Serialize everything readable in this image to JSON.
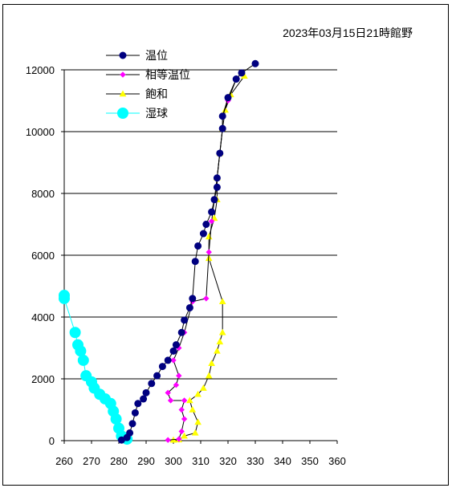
{
  "chart_data": {
    "type": "scatter",
    "title": "2023年03月15日21時館野",
    "xlabel": "",
    "ylabel": "",
    "xlim": [
      260,
      360
    ],
    "ylim": [
      0,
      12000
    ],
    "x_ticks": [
      260,
      270,
      280,
      290,
      300,
      310,
      320,
      330,
      340,
      350,
      360
    ],
    "y_ticks": [
      0,
      2000,
      4000,
      6000,
      8000,
      10000,
      12000
    ],
    "x_tick_labels": [
      "260",
      "270",
      "280",
      "290",
      "300",
      "310",
      "320",
      "330",
      "340",
      "350",
      "360"
    ],
    "y_tick_labels": [
      "0",
      "2000",
      "4000",
      "6000",
      "8000",
      "10000",
      "12000"
    ],
    "grid": "horizontal",
    "legend_position": "top-left",
    "series": [
      {
        "name": "温位",
        "color": "#000080",
        "marker": "circle-large",
        "points": [
          [
            281,
            20
          ],
          [
            283,
            100
          ],
          [
            284,
            250
          ],
          [
            285,
            550
          ],
          [
            286,
            900
          ],
          [
            287,
            1200
          ],
          [
            289,
            1350
          ],
          [
            290,
            1550
          ],
          [
            292,
            1850
          ],
          [
            294,
            2100
          ],
          [
            296,
            2400
          ],
          [
            298,
            2600
          ],
          [
            300,
            2900
          ],
          [
            301,
            3100
          ],
          [
            303,
            3500
          ],
          [
            304,
            3900
          ],
          [
            306,
            4300
          ],
          [
            307,
            4600
          ],
          [
            308,
            5800
          ],
          [
            309,
            6300
          ],
          [
            311,
            6700
          ],
          [
            312,
            7000
          ],
          [
            314,
            7400
          ],
          [
            315,
            7800
          ],
          [
            316,
            8200
          ],
          [
            316,
            8500
          ],
          [
            317,
            9300
          ],
          [
            318,
            10100
          ],
          [
            318,
            10500
          ],
          [
            320,
            11100
          ],
          [
            323,
            11700
          ],
          [
            325,
            11900
          ],
          [
            330,
            12200
          ]
        ]
      },
      {
        "name": "相等温位",
        "color": "#ff00ff",
        "marker": "diamond",
        "points": [
          [
            298,
            20
          ],
          [
            302,
            50
          ],
          [
            303,
            300
          ],
          [
            304,
            700
          ],
          [
            303,
            1000
          ],
          [
            304,
            1300
          ],
          [
            299,
            1300
          ],
          [
            298,
            1550
          ],
          [
            301,
            1800
          ],
          [
            302,
            2100
          ],
          [
            300,
            2600
          ],
          [
            302,
            3000
          ],
          [
            304,
            3500
          ],
          [
            307,
            4500
          ],
          [
            312,
            4600
          ],
          [
            313,
            6100
          ],
          [
            314,
            7100
          ],
          [
            315,
            7800
          ],
          [
            316,
            8500
          ],
          [
            317,
            9300
          ],
          [
            318,
            10100
          ],
          [
            318,
            10500
          ],
          [
            320,
            11000
          ],
          [
            323,
            11700
          ],
          [
            325,
            11900
          ]
        ]
      },
      {
        "name": "飽和",
        "color": "#ffff00",
        "marker": "triangle",
        "points": [
          [
            300,
            20
          ],
          [
            302,
            30
          ],
          [
            304,
            150
          ],
          [
            308,
            250
          ],
          [
            309,
            600
          ],
          [
            307,
            1000
          ],
          [
            306,
            1300
          ],
          [
            309,
            1500
          ],
          [
            311,
            1700
          ],
          [
            313,
            2100
          ],
          [
            314,
            2500
          ],
          [
            316,
            2900
          ],
          [
            317,
            3200
          ],
          [
            318,
            3500
          ],
          [
            318,
            4500
          ],
          [
            313,
            5900
          ],
          [
            313,
            6600
          ],
          [
            315,
            7200
          ],
          [
            316,
            7800
          ],
          [
            316,
            8500
          ],
          [
            317,
            9300
          ],
          [
            318,
            10100
          ],
          [
            319,
            10700
          ],
          [
            321,
            11200
          ],
          [
            326,
            11800
          ]
        ]
      },
      {
        "name": "湿球",
        "color": "#00ffff",
        "marker": "circle-xlarge",
        "points": [
          [
            283,
            50
          ],
          [
            281,
            150
          ],
          [
            280,
            400
          ],
          [
            279,
            700
          ],
          [
            278,
            950
          ],
          [
            277,
            1200
          ],
          [
            275,
            1350
          ],
          [
            273,
            1500
          ],
          [
            271,
            1700
          ],
          [
            270,
            1900
          ],
          [
            268,
            2100
          ],
          [
            267,
            2600
          ],
          [
            266,
            2900
          ],
          [
            265,
            3100
          ],
          [
            264,
            3500
          ],
          [
            260,
            4600
          ],
          [
            260,
            4700
          ]
        ]
      }
    ]
  }
}
